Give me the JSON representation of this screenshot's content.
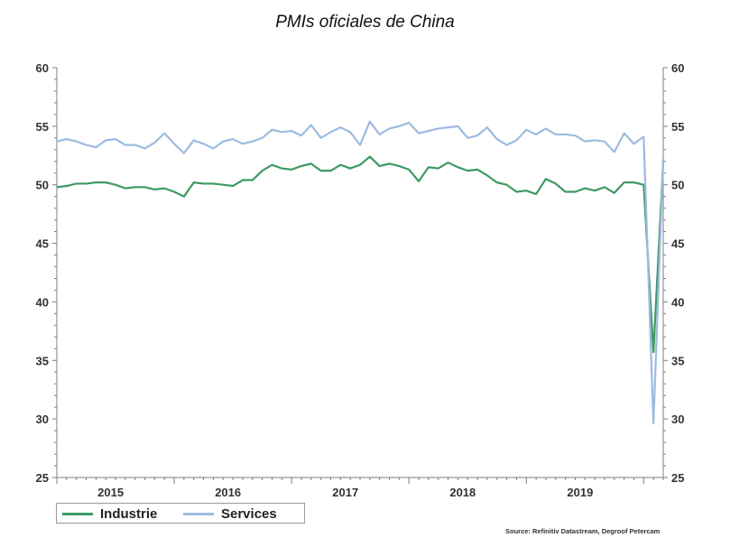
{
  "title": "PMIs oficiales de China",
  "source": "Source: Refinitiv Datastream, Degroof Petercam",
  "colors": {
    "industrie": "#3d9a62",
    "services": "#9dbbe0",
    "axis": "#7f7f7f"
  },
  "chart_data": {
    "type": "line",
    "title": "PMIs oficiales de China",
    "xlabel": "",
    "ylabel": "",
    "ylim": [
      25,
      60
    ],
    "yticks": [
      25,
      30,
      35,
      40,
      45,
      50,
      55,
      60
    ],
    "y_tick_labels": [
      "25",
      "30",
      "35",
      "40",
      "45",
      "50",
      "55",
      "60"
    ],
    "x_range": [
      "2015-01",
      "2020-03"
    ],
    "year_labels": [
      "2015",
      "2016",
      "2017",
      "2018",
      "2019"
    ],
    "legend_position": "bottom-left",
    "grid": false,
    "x": [
      "2015-01",
      "2015-02",
      "2015-03",
      "2015-04",
      "2015-05",
      "2015-06",
      "2015-07",
      "2015-08",
      "2015-09",
      "2015-10",
      "2015-11",
      "2015-12",
      "2016-01",
      "2016-02",
      "2016-03",
      "2016-04",
      "2016-05",
      "2016-06",
      "2016-07",
      "2016-08",
      "2016-09",
      "2016-10",
      "2016-11",
      "2016-12",
      "2017-01",
      "2017-02",
      "2017-03",
      "2017-04",
      "2017-05",
      "2017-06",
      "2017-07",
      "2017-08",
      "2017-09",
      "2017-10",
      "2017-11",
      "2017-12",
      "2018-01",
      "2018-02",
      "2018-03",
      "2018-04",
      "2018-05",
      "2018-06",
      "2018-07",
      "2018-08",
      "2018-09",
      "2018-10",
      "2018-11",
      "2018-12",
      "2019-01",
      "2019-02",
      "2019-03",
      "2019-04",
      "2019-05",
      "2019-06",
      "2019-07",
      "2019-08",
      "2019-09",
      "2019-10",
      "2019-11",
      "2019-12",
      "2020-01",
      "2020-02",
      "2020-03"
    ],
    "series": [
      {
        "name": "Industrie",
        "values": [
          49.8,
          49.9,
          50.1,
          50.1,
          50.2,
          50.2,
          50.0,
          49.7,
          49.8,
          49.8,
          49.6,
          49.7,
          49.4,
          49.0,
          50.2,
          50.1,
          50.1,
          50.0,
          49.9,
          50.4,
          50.4,
          51.2,
          51.7,
          51.4,
          51.3,
          51.6,
          51.8,
          51.2,
          51.2,
          51.7,
          51.4,
          51.7,
          52.4,
          51.6,
          51.8,
          51.6,
          51.3,
          50.3,
          51.5,
          51.4,
          51.9,
          51.5,
          51.2,
          51.3,
          50.8,
          50.2,
          50.0,
          49.4,
          49.5,
          49.2,
          50.5,
          50.1,
          49.4,
          49.4,
          49.7,
          49.5,
          49.8,
          49.3,
          50.2,
          50.2,
          50.0,
          35.7,
          52.0
        ]
      },
      {
        "name": "Services",
        "values": [
          53.7,
          53.9,
          53.7,
          53.4,
          53.2,
          53.8,
          53.9,
          53.4,
          53.4,
          53.1,
          53.6,
          54.4,
          53.5,
          52.7,
          53.8,
          53.5,
          53.1,
          53.7,
          53.9,
          53.5,
          53.7,
          54.0,
          54.7,
          54.5,
          54.6,
          54.2,
          55.1,
          54.0,
          54.5,
          54.9,
          54.5,
          53.4,
          55.4,
          54.3,
          54.8,
          55.0,
          55.3,
          54.4,
          54.6,
          54.8,
          54.9,
          55.0,
          54.0,
          54.2,
          54.9,
          53.9,
          53.4,
          53.8,
          54.7,
          54.3,
          54.8,
          54.3,
          54.3,
          54.2,
          53.7,
          53.8,
          53.7,
          52.8,
          54.4,
          53.5,
          54.1,
          29.6,
          52.3
        ]
      }
    ]
  }
}
